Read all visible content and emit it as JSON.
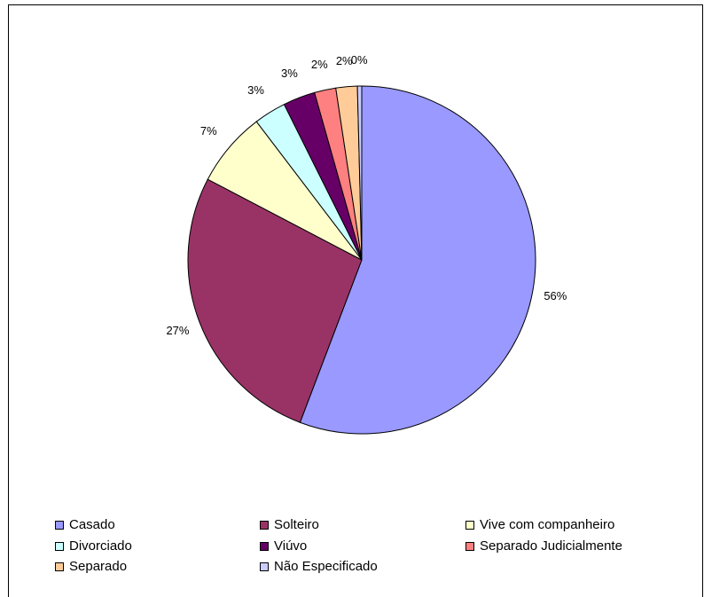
{
  "chart_data": {
    "type": "pie",
    "title": "",
    "start_angle_deg": 0,
    "direction": "clockwise",
    "legend_position": "bottom",
    "slices": [
      {
        "name": "Casado",
        "value": 56,
        "label": "56%",
        "color": "#9999ff"
      },
      {
        "name": "Solteiro",
        "value": 27,
        "label": "27%",
        "color": "#993366"
      },
      {
        "name": "Vive com companheiro",
        "value": 7,
        "label": "7%",
        "color": "#ffffcc"
      },
      {
        "name": "Divorciado",
        "value": 3,
        "label": "3%",
        "color": "#ccffff"
      },
      {
        "name": "Viúvo",
        "value": 3,
        "label": "3%",
        "color": "#660066"
      },
      {
        "name": "Separado Judicialmente",
        "value": 2,
        "label": "2%",
        "color": "#ff8080"
      },
      {
        "name": "Separado",
        "value": 2,
        "label": "2%",
        "color": "#ffcc99"
      },
      {
        "name": "Não Especificado",
        "value": 0.4,
        "label": "0%",
        "color": "#ccccff"
      }
    ]
  }
}
